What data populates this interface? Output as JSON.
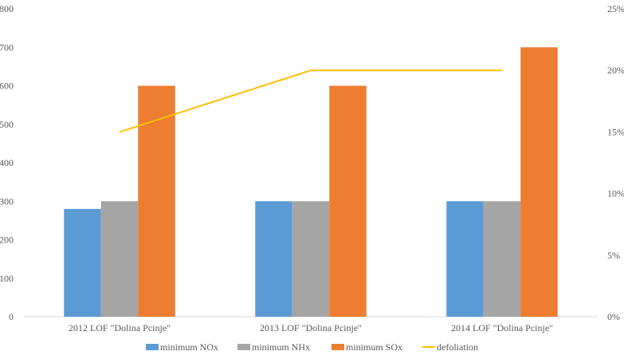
{
  "chart_data": {
    "type": "bar",
    "categories": [
      "2012 LOF \"Dolina Pcinje\"",
      "2013  LOF \"Dolina Pcinje\"",
      "2014  LOF \"Dolina Pcinje\""
    ],
    "series": [
      {
        "name": "minimum NOx",
        "values": [
          280,
          300,
          300
        ],
        "color": "#5B9BD5",
        "kind": "bar"
      },
      {
        "name": "minimum NHx",
        "values": [
          300,
          300,
          300
        ],
        "color": "#A5A5A5",
        "kind": "bar"
      },
      {
        "name": "minimum SOx",
        "values": [
          600,
          600,
          700
        ],
        "color": "#ED7D31",
        "kind": "bar"
      },
      {
        "name": "defoliation",
        "values": [
          0.15,
          0.2,
          0.2
        ],
        "color": "#FFC000",
        "kind": "line",
        "axis": "right"
      }
    ],
    "left_axis": {
      "ylim": [
        0,
        800
      ],
      "ticks": [
        "0",
        "100",
        "200",
        "300",
        "400",
        "500",
        "600",
        "700",
        "800"
      ]
    },
    "right_axis": {
      "ylim": [
        0,
        0.25
      ],
      "ticks": [
        "0%",
        "5%",
        "10%",
        "15%",
        "20%",
        "25%"
      ]
    },
    "grid": false,
    "legend_position": "bottom"
  }
}
